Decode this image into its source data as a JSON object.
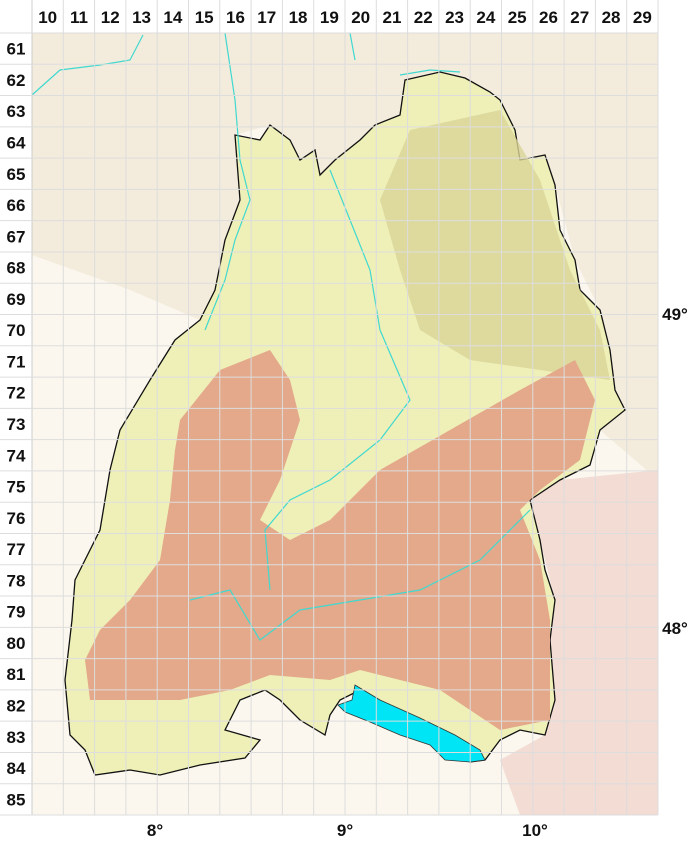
{
  "map": {
    "columns": [
      "10",
      "11",
      "12",
      "13",
      "14",
      "15",
      "16",
      "17",
      "18",
      "19",
      "20",
      "21",
      "22",
      "23",
      "24",
      "25",
      "26",
      "27",
      "28",
      "29"
    ],
    "rows": [
      "61",
      "62",
      "63",
      "64",
      "65",
      "66",
      "67",
      "68",
      "69",
      "70",
      "71",
      "72",
      "73",
      "74",
      "75",
      "76",
      "77",
      "78",
      "79",
      "80",
      "81",
      "82",
      "83",
      "84",
      "85"
    ],
    "longitude_labels": [
      {
        "text": "8°"
      },
      {
        "text": "9°"
      },
      {
        "text": "10°"
      }
    ],
    "latitude_labels": [
      {
        "text": "49°"
      },
      {
        "text": "48°"
      }
    ],
    "colors": {
      "lowland": "#eef0b8",
      "upland": "#d9d597",
      "highland": "#e3a98a",
      "lake": "#00e5f5",
      "river": "#40d8d0",
      "outside_north": "#f3ecdc",
      "outside_east": "#f2dcd4",
      "border": "#111111",
      "grid": "#ffffff"
    }
  }
}
